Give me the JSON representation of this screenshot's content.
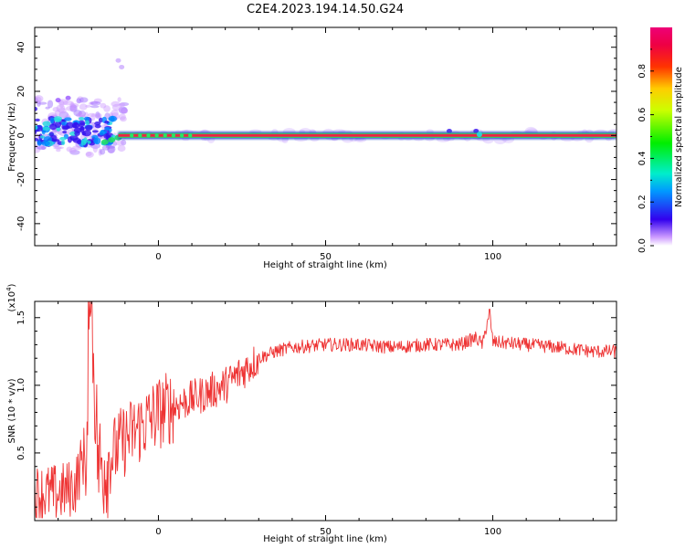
{
  "title": "C2E4.2023.194.14.50.G24",
  "colors": {
    "snr_line": "#ee3333",
    "carrier_line": "#ee2244",
    "carrier_edge": "#33cc66"
  },
  "chart_data": [
    {
      "type": "heatmap",
      "xlabel": "Height of straight line (km)",
      "ylabel": "Frequency (Hz)",
      "xlim": [
        -37,
        137
      ],
      "ylim": [
        -50,
        49
      ],
      "x_ticks": [
        0,
        50,
        100
      ],
      "y_ticks": [
        -40,
        -20,
        0,
        20,
        40
      ],
      "grid": false,
      "colorbar": {
        "label": "Normalized spectral amplitude",
        "range": [
          0,
          1
        ],
        "ticks": [
          "0.0",
          "0.2",
          "0.4",
          "0.6",
          "0.8"
        ],
        "colormap": "rainbow (white/violet low → blue → cyan → green → yellow → red → magenta high)"
      },
      "description": "Strong carrier near 0 Hz from x ≈ -14 km to 137 km; scattered low-amplitude spread between -37 and -10 km spanning about -10 to +18 Hz"
    },
    {
      "type": "line",
      "xlabel": "Height of straight line (km)",
      "ylabel": "SNR (10 * v/v)",
      "multiplier": "(x10⁴)",
      "xlim": [
        -37,
        137
      ],
      "ylim": [
        0,
        1.62
      ],
      "x_ticks": [
        0,
        50,
        100
      ],
      "y_ticks": [
        "0.5",
        "1.0",
        "1.5"
      ],
      "grid": false,
      "series": [
        {
          "x": [
            -37,
            -30,
            -25,
            -21,
            -20,
            -18,
            -15,
            -10,
            -5,
            0,
            5,
            10,
            15,
            20,
            25,
            30,
            35,
            40,
            50,
            60,
            70,
            80,
            90,
            95,
            97,
            99,
            100,
            110,
            120,
            130,
            137
          ],
          "y": [
            0.2,
            0.2,
            0.25,
            0.6,
            1.55,
            0.4,
            0.45,
            0.6,
            0.7,
            0.8,
            0.85,
            0.9,
            0.95,
            1.0,
            1.1,
            1.2,
            1.25,
            1.28,
            1.3,
            1.3,
            1.28,
            1.3,
            1.3,
            1.35,
            1.3,
            1.55,
            1.32,
            1.3,
            1.28,
            1.25,
            1.25
          ]
        }
      ]
    }
  ]
}
